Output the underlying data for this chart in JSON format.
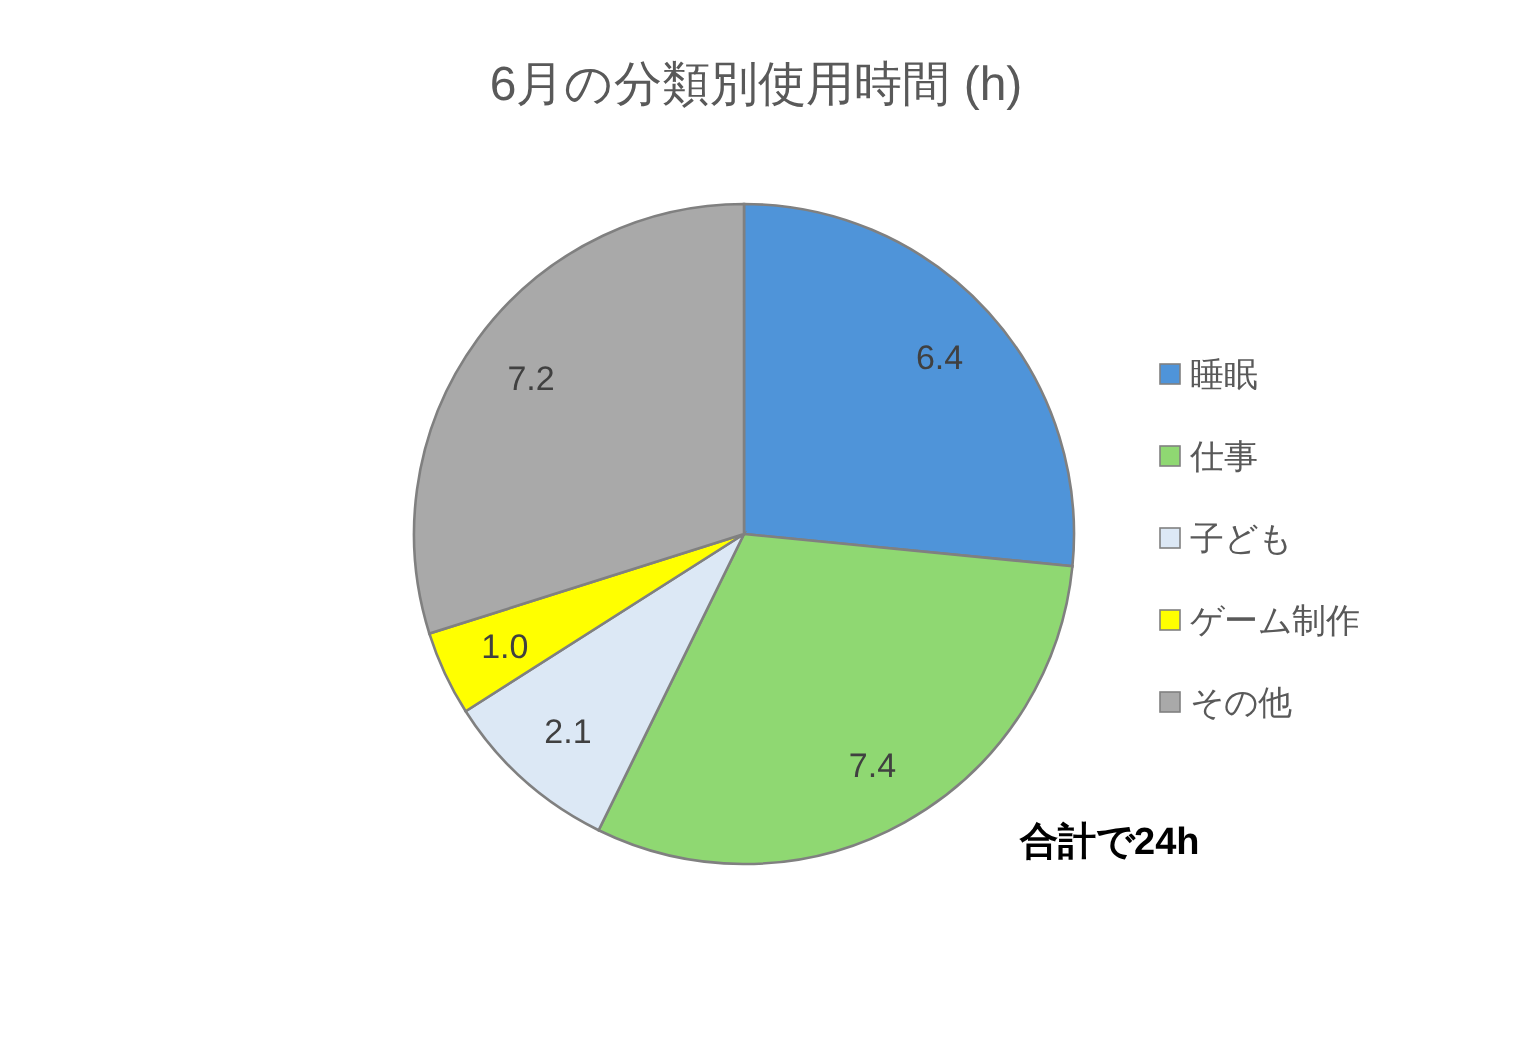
{
  "chart_data": {
    "type": "pie",
    "title": "6月の分類別使用時間 (h)",
    "categories": [
      "睡眠",
      "仕事",
      "子ども",
      "ゲーム制作",
      "その他"
    ],
    "values": [
      6.4,
      7.4,
      2.1,
      1.0,
      7.2
    ],
    "colors": [
      "#4f94d9",
      "#8fd872",
      "#dce8f5",
      "#ffff00",
      "#a9a9a9"
    ],
    "value_labels": [
      "6.4",
      "7.4",
      "2.1",
      "1.0",
      "7.2"
    ],
    "legend": "right",
    "annotations": [
      "合計で24h"
    ]
  }
}
